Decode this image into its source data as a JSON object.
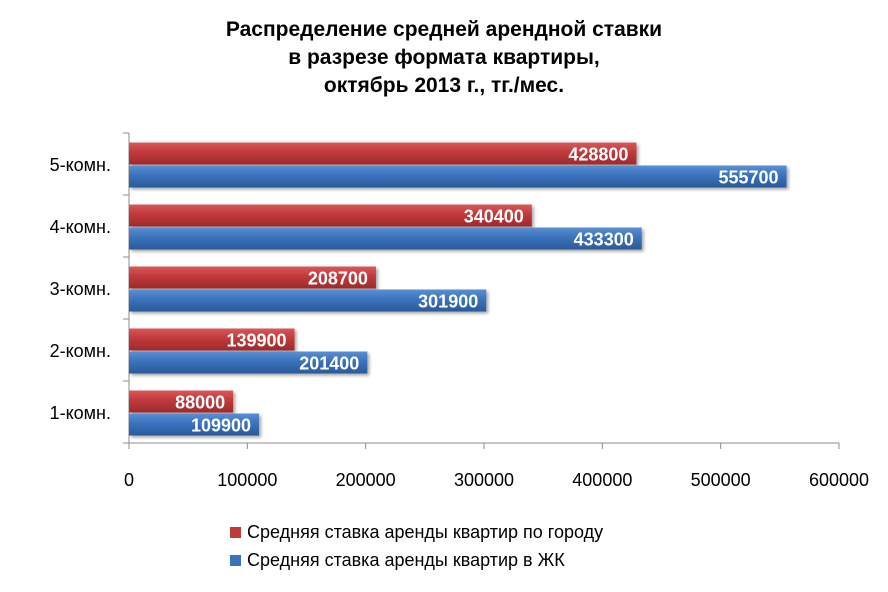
{
  "chart_data": {
    "type": "bar",
    "orientation": "horizontal",
    "title_lines": [
      "Распределение средней арендной ставки",
      "в разрезе формата квартиры,",
      "октябрь 2013 г., тг./мес."
    ],
    "categories": [
      "5-комн.",
      "4-комн.",
      "3-комн.",
      "2-комн.",
      "1-комн."
    ],
    "series": [
      {
        "name": "Средняя ставка аренды квартир по городу",
        "color": "#c0393b",
        "values": [
          428800,
          340400,
          208700,
          139900,
          88000
        ]
      },
      {
        "name": "Средняя ставка аренды квартир в ЖК",
        "color": "#3a72bd",
        "values": [
          555700,
          433300,
          301900,
          201400,
          109900
        ]
      }
    ],
    "x_ticks": [
      "0",
      "100000",
      "200000",
      "300000",
      "400000",
      "500000",
      "600000"
    ],
    "xlim": [
      0,
      600000
    ],
    "grid": false,
    "legend_position": "bottom",
    "data_labels": true
  }
}
